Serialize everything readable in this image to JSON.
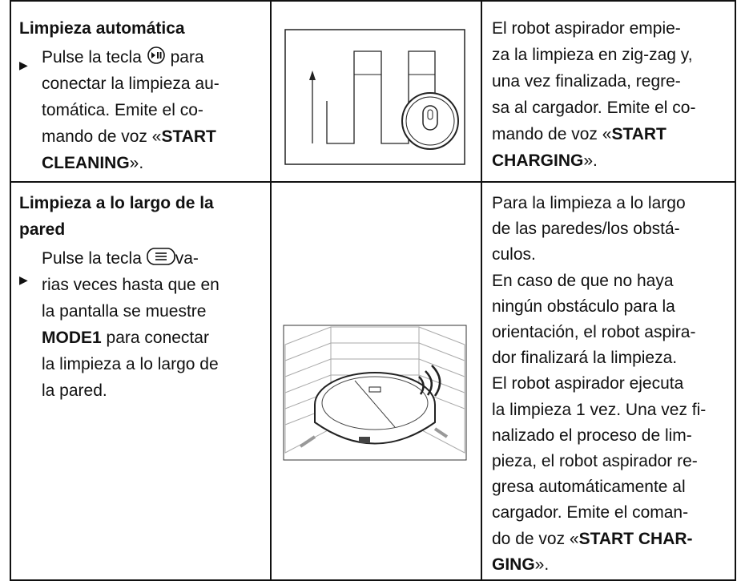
{
  "table": {
    "rows": [
      {
        "left": {
          "title": [
            [
              {
                "text": "Limpieza automática"
              }
            ]
          ],
          "bullet": [
            [
              {
                "text": "Pulse la tecla "
              },
              {
                "icon": "play"
              },
              {
                "text": " para"
              }
            ],
            [
              {
                "text": "conectar la limpieza au-"
              }
            ],
            [
              {
                "text": "tomática. Emite el co-"
              }
            ],
            [
              {
                "text": "mando de voz «"
              },
              {
                "text": "START",
                "bold": true
              }
            ],
            [
              {
                "text": "CLEANING",
                "bold": true
              },
              {
                "text": "»."
              }
            ]
          ]
        },
        "right": [
          [
            {
              "text": "El robot aspirador empie-"
            }
          ],
          [
            {
              "text": "za la limpieza en zig-zag y,"
            }
          ],
          [
            {
              "text": "una vez finalizada, regre-"
            }
          ],
          [
            {
              "text": "sa al cargador. Emite el co-"
            }
          ],
          [
            {
              "text": "mando de voz «"
            },
            {
              "text": "START",
              "bold": true
            }
          ],
          [
            {
              "text": "CHARGING",
              "bold": true
            },
            {
              "text": "»."
            }
          ]
        ]
      },
      {
        "left": {
          "title": [
            [
              {
                "text": "Limpieza a lo largo de la"
              }
            ],
            [
              {
                "text": "pared"
              }
            ]
          ],
          "bullet": [
            [
              {
                "text": "Pulse la tecla "
              },
              {
                "icon": "menu"
              },
              {
                "text": "va-"
              }
            ],
            [
              {
                "text": "rias veces  hasta que en"
              }
            ],
            [
              {
                "text": "la pantalla se muestre"
              }
            ],
            [
              {
                "text": "MODE1",
                "bold": true
              },
              {
                "text": " para conectar"
              }
            ],
            [
              {
                "text": "la limpieza a lo largo de"
              }
            ],
            [
              {
                "text": "la pared."
              }
            ]
          ]
        },
        "right": [
          [
            {
              "text": "Para la limpieza a lo largo"
            }
          ],
          [
            {
              "text": "de las paredes/los obstá-"
            }
          ],
          [
            {
              "text": "culos."
            }
          ],
          [
            {
              "text": "En caso de que no haya"
            }
          ],
          [
            {
              "text": "ningún obstáculo para la"
            }
          ],
          [
            {
              "text": "orientación, el robot aspira-"
            }
          ],
          [
            {
              "text": "dor finalizará la limpieza."
            }
          ],
          [
            {
              "text": "El robot aspirador ejecuta"
            }
          ],
          [
            {
              "text": "la limpieza 1 vez. Una vez fi-"
            }
          ],
          [
            {
              "text": "nalizado el proceso de lim-"
            }
          ],
          [
            {
              "text": "pieza, el robot aspirador re-"
            }
          ],
          [
            {
              "text": "gresa automáticamente al"
            }
          ],
          [
            {
              "text": "cargador. Emite el coman-"
            }
          ],
          [
            {
              "text": "do de voz «"
            },
            {
              "text": "START CHAR-",
              "bold": true
            }
          ],
          [
            {
              "text": "GING",
              "bold": true
            },
            {
              "text": "»."
            }
          ]
        ]
      }
    ]
  }
}
